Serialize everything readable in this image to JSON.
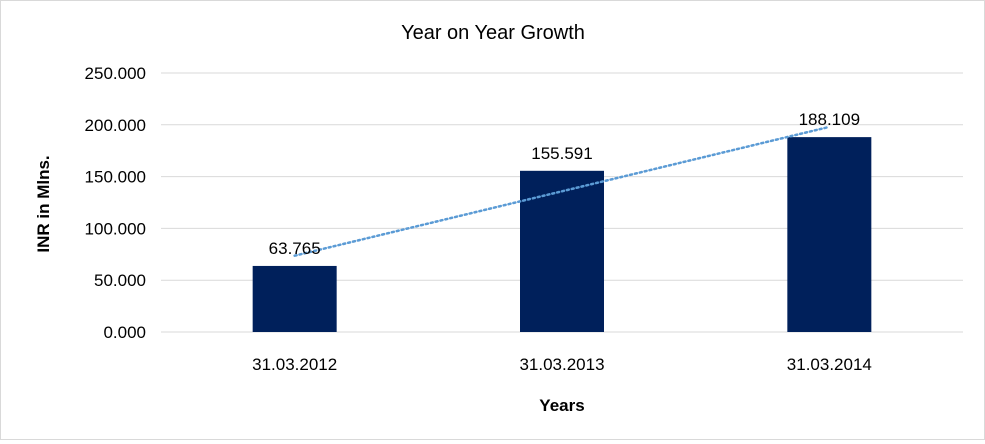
{
  "chart_data": {
    "type": "bar",
    "title": "Year on Year Growth",
    "xlabel": "Years",
    "ylabel": "INR in Mlns.",
    "categories": [
      "31.03.2012",
      "31.03.2013",
      "31.03.2014"
    ],
    "values": [
      63.765,
      155.591,
      188.109
    ],
    "data_labels": [
      "63.765",
      "155.591",
      "188.109"
    ],
    "ylim": [
      0,
      250
    ],
    "yticks": [
      0,
      50,
      100,
      150,
      200,
      250
    ],
    "ytick_labels": [
      "0.000",
      "50.000",
      "100.000",
      "150.000",
      "200.000",
      "250.000"
    ],
    "grid": true,
    "legend": "none",
    "trendline": {
      "type": "linear",
      "style": "dotted"
    },
    "colors": {
      "bar": "#00205b",
      "trendline": "#5b9bd5",
      "grid": "#d9d9d9"
    }
  }
}
